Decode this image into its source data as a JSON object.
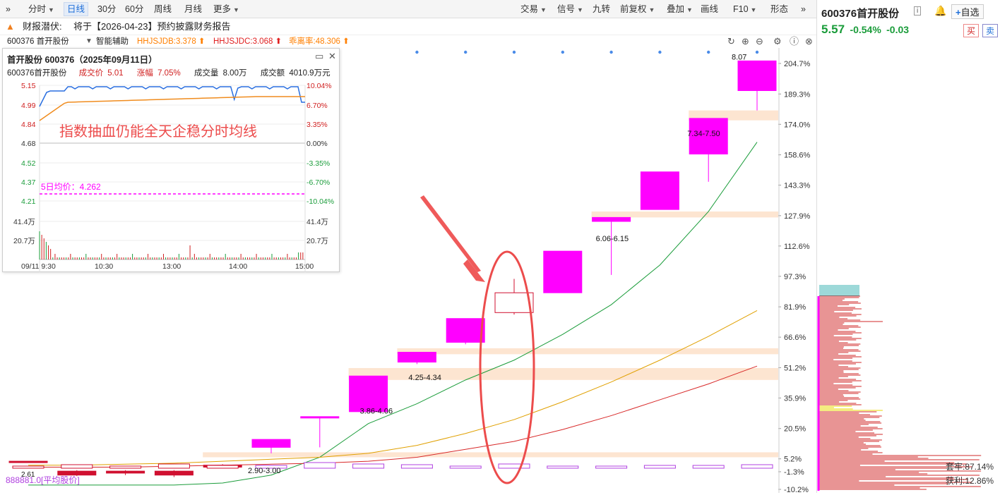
{
  "toolbar": {
    "left": [
      {
        "label": "分时",
        "caret": true
      },
      {
        "label": "日线",
        "active": true
      },
      {
        "label": "30分"
      },
      {
        "label": "60分"
      },
      {
        "label": "周线"
      },
      {
        "label": "月线"
      },
      {
        "label": "更多",
        "caret": true
      }
    ],
    "right": [
      {
        "label": "交易",
        "caret": true
      },
      {
        "label": "信号",
        "caret": true
      },
      {
        "label": "九转"
      },
      {
        "label": "前复权",
        "caret": true
      },
      {
        "label": "叠加",
        "caret": true
      },
      {
        "label": "画线"
      },
      {
        "label": "F10",
        "caret": true
      },
      {
        "label": "形态"
      }
    ]
  },
  "notice": {
    "prefix": "财报潜伏:",
    "text": "将于【2026-04-23】预约披露财务报告"
  },
  "indicator": {
    "stock": "600376 首开股份",
    "aux": "智能辅助",
    "items": [
      {
        "text": "HHJSJDB:3.378",
        "color": "#ff7f00"
      },
      {
        "text": "HHJSJDC:3.068",
        "color": "#e02020"
      },
      {
        "text": "乖离率:48.306",
        "color": "#ff7f00"
      }
    ]
  },
  "quote": {
    "code": "600376",
    "name": "首开股份",
    "price": "5.57",
    "change_pct": "-0.54%",
    "change": "-0.03",
    "add": "自选",
    "buy": "买",
    "sell": "卖"
  },
  "popup": {
    "title": "首开股份 600376（2025年09月11日）",
    "line2": {
      "stock": "600376首开股份",
      "price_label": "成交价",
      "price": "5.01",
      "chg_label": "涨幅",
      "chg": "7.05%",
      "vol_label": "成交量",
      "vol": "8.00万",
      "amt_label": "成交额",
      "amt": "4010.9万元"
    },
    "left_ticks": [
      "5.15",
      "4.99",
      "4.84",
      "4.68",
      "4.52",
      "4.37",
      "4.21"
    ],
    "right_ticks": [
      "10.04%",
      "6.70%",
      "3.35%",
      "0.00%",
      "-3.35%",
      "-6.70%",
      "-10.04%"
    ],
    "vol_ticks": [
      "41.4万",
      "20.7万"
    ],
    "times": [
      "09/11 9:30",
      "10:30",
      "13:00",
      "14:00",
      "15:00"
    ],
    "annotation": "指数抽血仍能全天企稳分时均线",
    "avg_label": "5日均价：4.262"
  },
  "chart_data": {
    "type": "candlestick",
    "y_scale": "percent",
    "ylim": [
      -10.2,
      204.7
    ],
    "y_ticks": [
      "204.7%",
      "189.3%",
      "174.0%",
      "158.6%",
      "143.3%",
      "127.9%",
      "112.6%",
      "97.3%",
      "81.9%",
      "66.6%",
      "51.2%",
      "35.9%",
      "20.5%",
      "5.2%",
      "-1.3%",
      "-10.2%"
    ],
    "candles": [
      {
        "o": 4,
        "c": 4,
        "h": 4,
        "l": 4,
        "color": "#d01030"
      },
      {
        "o": -3,
        "c": -1,
        "h": -0.5,
        "l": -3.5,
        "color": "#d01030"
      },
      {
        "o": -1,
        "c": -2,
        "h": -0.5,
        "l": -3,
        "color": "#d01030"
      },
      {
        "o": -3,
        "c": -1,
        "h": -0.5,
        "l": -4,
        "color": "#d01030"
      },
      {
        "o": 1,
        "c": 2,
        "h": 2.5,
        "l": 1,
        "color": "#d01030"
      },
      {
        "o": 11,
        "c": 15,
        "h": 15,
        "l": 8,
        "color": "#ff00ff"
      },
      {
        "o": 26,
        "c": 26.5,
        "h": 26.5,
        "l": 11,
        "color": "#ff00ff"
      },
      {
        "o": 29,
        "c": 47,
        "h": 47,
        "l": 29,
        "color": "#ff00ff"
      },
      {
        "o": 54,
        "c": 59,
        "h": 59,
        "l": 53,
        "color": "#ff00ff"
      },
      {
        "o": 64,
        "c": 76,
        "h": 76,
        "l": 63,
        "color": "#ff00ff"
      },
      {
        "o": 79,
        "c": 89,
        "h": 96,
        "l": 78,
        "color": "#d01030",
        "hollow": true
      },
      {
        "o": 89,
        "c": 110,
        "h": 110,
        "l": 89,
        "color": "#ff00ff"
      },
      {
        "o": 125,
        "c": 127,
        "h": 127,
        "l": 98,
        "color": "#ff00ff"
      },
      {
        "o": 131,
        "c": 150,
        "h": 150,
        "l": 131,
        "color": "#ff00ff"
      },
      {
        "o": 159,
        "c": 177,
        "h": 177,
        "l": 145,
        "color": "#ff00ff"
      },
      {
        "o": 191,
        "c": 206,
        "h": 206,
        "l": 181,
        "color": "#ff00ff"
      }
    ],
    "ma": [
      {
        "color": "#1a9c3a",
        "values": [
          -8,
          -8,
          -8,
          -8,
          -7,
          -3,
          6,
          23,
          33,
          45,
          55,
          68,
          83,
          103,
          130,
          165
        ]
      },
      {
        "color": "#e0a000",
        "values": [
          2,
          2,
          2.5,
          3,
          4,
          5,
          6,
          8,
          12,
          18,
          25,
          34,
          44,
          55,
          67,
          80
        ]
      },
      {
        "color": "#d82828",
        "values": [
          1,
          1,
          1,
          1.5,
          2,
          2.5,
          3,
          4,
          6,
          10,
          14,
          20,
          27,
          35,
          43,
          52
        ]
      }
    ],
    "ranges": [
      {
        "from": 4,
        "to": 15,
        "y1": 8.5,
        "y2": 6
      },
      {
        "from": 7,
        "to": 15,
        "y1": 51,
        "y2": 45
      },
      {
        "from": 8,
        "to": 15,
        "y1": 61,
        "y2": 58
      },
      {
        "from": 12,
        "to": 15,
        "y1": 130,
        "y2": 127
      },
      {
        "from": 14,
        "to": 15,
        "y1": 181,
        "y2": 176
      }
    ],
    "labels": [
      {
        "i": 5,
        "text": "2.90-3.00",
        "v": 3
      },
      {
        "i": 7,
        "text": "3.86-4.06",
        "v": 33
      },
      {
        "i": 8,
        "text": "4.25-4.34",
        "v": 50
      },
      {
        "i": 12,
        "text": "6.06-6.15",
        "v": 120
      },
      {
        "i": 14,
        "text": "7.34-7.50",
        "v": 173
      },
      {
        "i": 15,
        "text": "8.07",
        "v": 206
      }
    ],
    "volume_label": "888881.0[平均股价]",
    "first_label": "2.61"
  },
  "chip": {
    "profit_label": "获利:12.86%",
    "cost_label": "套牢:87.14%"
  }
}
